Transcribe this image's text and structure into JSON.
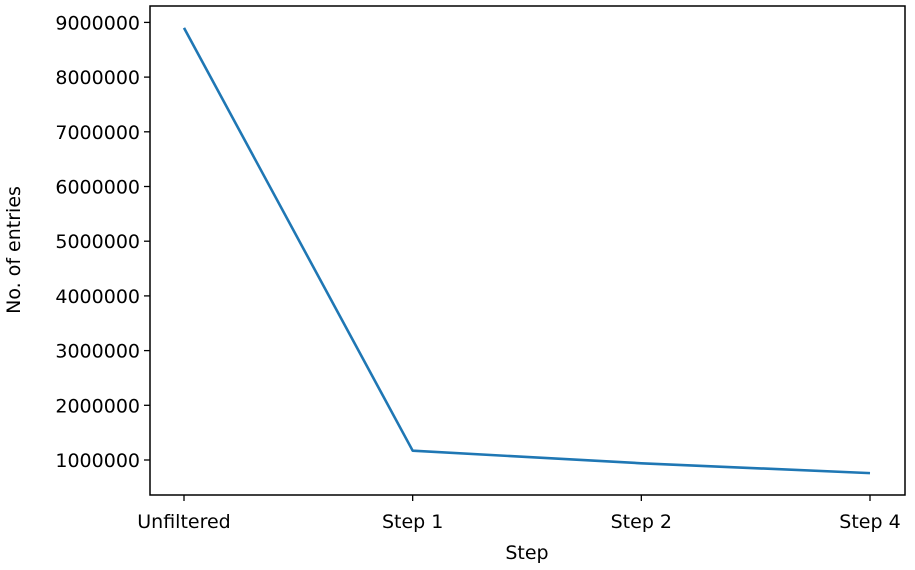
{
  "chart_data": {
    "type": "line",
    "categories": [
      "Unfiltered",
      "Step 1",
      "Step 2",
      "Step 4"
    ],
    "series": [
      {
        "values": [
          8900000,
          1170000,
          940000,
          760000
        ],
        "color": "#1f77b4"
      }
    ],
    "xlabel": "Step",
    "ylabel": "No. of entries",
    "yticks": [
      1000000,
      2000000,
      3000000,
      4000000,
      5000000,
      6000000,
      7000000,
      8000000,
      9000000
    ],
    "ylim": [
      360000,
      9300000
    ],
    "grid": false,
    "legend": "none"
  }
}
